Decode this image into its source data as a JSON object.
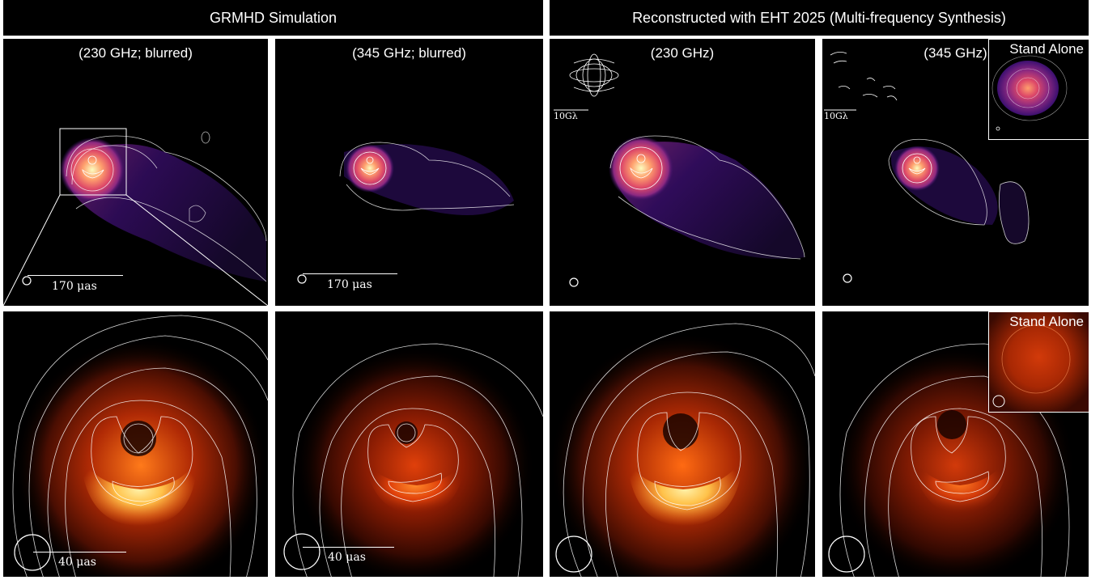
{
  "headers": {
    "left": "GRMHD Simulation",
    "right": "Reconstructed with EHT 2025 (Multi-frequency Synthesis)"
  },
  "top_panels": [
    {
      "label": "(230 GHz; blurred)",
      "scale": "170 μas"
    },
    {
      "label": "(345 GHz; blurred)",
      "scale": "170 μas"
    },
    {
      "label": "(230 GHz)",
      "uv_label": "10Gλ"
    },
    {
      "label": "(345 GHz)",
      "uv_label": "10Gλ",
      "inset_label": "Stand Alone"
    }
  ],
  "bottom_panels": [
    {
      "scale": "40 μas"
    },
    {
      "scale": "40 μas"
    },
    {},
    {
      "inset_label": "Stand Alone"
    }
  ],
  "colors": {
    "colormap": [
      "#000004",
      "#3b0f70",
      "#8c2981",
      "#de4968",
      "#fe9f6d",
      "#fcfdbf"
    ],
    "contour": "#ffffff"
  }
}
